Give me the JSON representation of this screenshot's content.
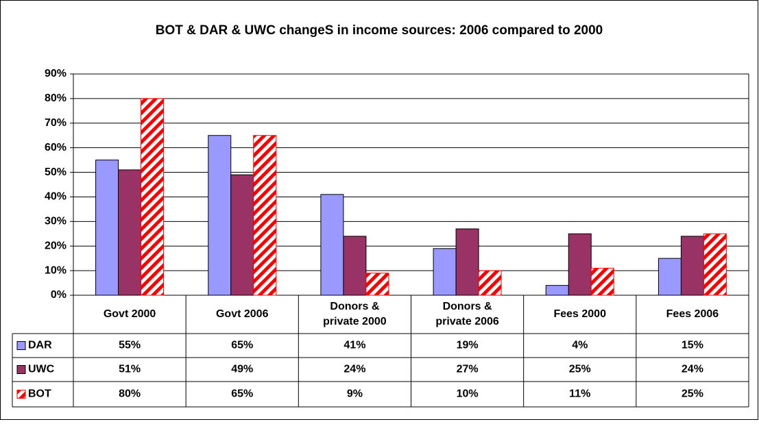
{
  "chart_data": {
    "type": "bar",
    "title": "BOT & DAR & UWC changeS in income sources: 2006 compared to 2000",
    "categories": [
      "Govt 2000",
      "Govt 2006",
      "Donors & private 2000",
      "Donors & private 2006",
      "Fees 2000",
      "Fees 2006"
    ],
    "series": [
      {
        "name": "DAR",
        "color": "#9999ff",
        "values": [
          55,
          65,
          41,
          19,
          4,
          15
        ],
        "value_labels": [
          "55%",
          "65%",
          "41%",
          "19%",
          "4%",
          "15%"
        ]
      },
      {
        "name": "UWC",
        "color": "#993366",
        "values": [
          51,
          49,
          24,
          27,
          25,
          24
        ],
        "value_labels": [
          "51%",
          "49%",
          "24%",
          "27%",
          "25%",
          "24%"
        ]
      },
      {
        "name": "BOT",
        "color": "#ff0000",
        "values": [
          80,
          65,
          9,
          10,
          11,
          25
        ],
        "value_labels": [
          "80%",
          "65%",
          "9%",
          "10%",
          "11%",
          "25%"
        ]
      }
    ],
    "ylim": [
      0,
      90
    ],
    "yticks": [
      {
        "value": 0,
        "label": "0%"
      },
      {
        "value": 10,
        "label": "10%"
      },
      {
        "value": 20,
        "label": "20%"
      },
      {
        "value": 30,
        "label": "30%"
      },
      {
        "value": 40,
        "label": "40%"
      },
      {
        "value": 50,
        "label": "50%"
      },
      {
        "value": 60,
        "label": "60%"
      },
      {
        "value": 70,
        "label": "70%"
      },
      {
        "value": 80,
        "label": "80%"
      },
      {
        "value": 90,
        "label": "90%"
      }
    ],
    "grid": true
  }
}
